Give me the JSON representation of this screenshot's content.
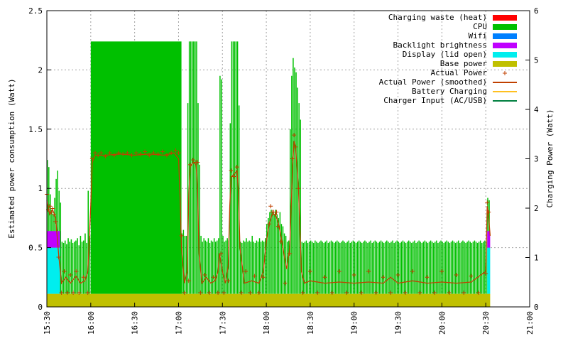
{
  "chart_data": {
    "type": "bar",
    "ylabel": "Estimated power consumption (Watt)",
    "y2label": "Charging Power (Watt)",
    "ylim": [
      0,
      2.5
    ],
    "y2lim": [
      0,
      6
    ],
    "xlim": [
      "15:30",
      "21:00"
    ],
    "y_ticks": [
      "0",
      "0.5",
      "1",
      "1.5",
      "2",
      "2.5"
    ],
    "y2_ticks": [
      "0",
      "1",
      "2",
      "3",
      "4",
      "5",
      "6"
    ],
    "x_ticks": [
      "15:30",
      "16:00",
      "16:30",
      "17:00",
      "17:30",
      "18:00",
      "18:30",
      "19:00",
      "19:30",
      "20:00",
      "20:30",
      "21:00"
    ],
    "grid": true,
    "legend_position": "top-right",
    "legend": [
      {
        "label": "Charging waste (heat)",
        "kind": "box",
        "color": "#ff0000"
      },
      {
        "label": "CPU",
        "kind": "box",
        "color": "#00c000"
      },
      {
        "label": "Wifi",
        "kind": "box",
        "color": "#0080ff"
      },
      {
        "label": "Backlight brightness",
        "kind": "box",
        "color": "#c000ff"
      },
      {
        "label": "Display (lid open)",
        "kind": "box",
        "color": "#00eeee"
      },
      {
        "label": "Base power",
        "kind": "box",
        "color": "#c0c000"
      },
      {
        "label": "Actual Power",
        "kind": "point",
        "color": "#c04000"
      },
      {
        "label": "Actual Power (smoothed)",
        "kind": "line",
        "color": "#c04000"
      },
      {
        "label": "Battery Charging",
        "kind": "line",
        "color": "#ffc020"
      },
      {
        "label": "Charger Input (AC/USB)",
        "kind": "line",
        "color": "#008040"
      }
    ],
    "colors": {
      "base": "#c0c000",
      "display": "#00eeee",
      "backlight": "#c000ff",
      "cpu": "#00c000",
      "actual": "#c04000"
    },
    "base_power": 0.11,
    "lid_open_periods": [
      {
        "start": "15:30",
        "end": "15:39",
        "display": 0.39,
        "backlight": 0.14
      },
      {
        "start": "20:31",
        "end": "20:33",
        "display": 0.39,
        "backlight": 0.14
      }
    ],
    "cpu_segments": [
      {
        "start": "15:30",
        "end": "15:40",
        "values": [
          1.24,
          1.18,
          0.95,
          0.82,
          0.78,
          0.92,
          1.08,
          1.15,
          0.98,
          0.88
        ]
      },
      {
        "start": "15:40",
        "end": "16:00",
        "values": [
          0.55,
          0.54,
          0.56,
          0.53,
          0.58,
          0.55,
          0.57,
          0.54,
          0.55,
          0.56,
          0.58,
          0.52,
          0.6,
          0.55,
          0.56,
          0.62,
          0.54,
          0.98,
          0.6
        ]
      },
      {
        "start": "16:00",
        "end": "17:02",
        "values": [
          2.24
        ]
      },
      {
        "start": "17:02",
        "end": "17:06",
        "values": [
          0.62,
          0.65,
          0.6,
          0.6
        ]
      },
      {
        "start": "17:06",
        "end": "17:13",
        "values": [
          1.72,
          2.24,
          2.24,
          2.24,
          2.24,
          2.24,
          2.24
        ]
      },
      {
        "start": "17:13",
        "end": "17:29",
        "values": [
          1.72,
          1.2,
          0.6,
          0.55,
          0.58,
          0.56,
          0.55,
          0.58,
          0.54,
          0.56,
          0.55,
          0.58,
          0.55,
          0.56,
          0.58,
          1.95
        ]
      },
      {
        "start": "17:29",
        "end": "17:35",
        "values": [
          1.92,
          0.6,
          0.55,
          0.56,
          0.58,
          0.56
        ]
      },
      {
        "start": "17:35",
        "end": "17:42",
        "values": [
          1.55,
          2.24,
          2.24,
          2.24,
          2.24,
          2.24,
          1.7
        ]
      },
      {
        "start": "17:42",
        "end": "18:00",
        "values": [
          0.55,
          0.54,
          0.56,
          0.55,
          0.58,
          0.55,
          0.56,
          0.55,
          0.6,
          0.55,
          0.54,
          0.56,
          0.55,
          0.58,
          0.55,
          0.56,
          0.55,
          0.58
        ]
      },
      {
        "start": "18:00",
        "end": "18:14",
        "values": [
          0.7,
          0.75,
          0.8,
          0.82,
          0.8,
          0.78,
          0.82,
          0.78,
          0.75,
          0.8,
          0.7,
          0.68,
          0.62,
          0.6
        ]
      },
      {
        "start": "18:14",
        "end": "18:24",
        "values": [
          0.55,
          0.56,
          1.5,
          1.95,
          2.1,
          2.02,
          1.98,
          1.85,
          1.72,
          1.58
        ]
      },
      {
        "start": "18:24",
        "end": "20:31",
        "values": [
          0.55,
          0.54,
          0.55,
          0.56,
          0.54,
          0.55,
          0.56,
          0.55,
          0.54,
          0.56,
          0.55,
          0.54,
          0.55,
          0.56,
          0.55,
          0.54,
          0.55,
          0.56,
          0.54,
          0.55,
          0.56,
          0.55,
          0.54,
          0.55,
          0.56,
          0.55,
          0.54,
          0.55,
          0.56,
          0.55,
          0.54,
          0.55,
          0.56,
          0.54,
          0.55,
          0.56,
          0.55,
          0.54,
          0.55,
          0.56,
          0.55,
          0.54,
          0.55,
          0.56,
          0.55,
          0.54,
          0.55,
          0.56,
          0.54,
          0.55,
          0.56,
          0.55,
          0.54,
          0.55,
          0.56,
          0.55,
          0.54,
          0.55,
          0.56,
          0.55,
          0.54,
          0.55,
          0.56,
          0.54,
          0.55,
          0.56,
          0.55,
          0.54,
          0.55,
          0.56,
          0.55,
          0.54,
          0.55,
          0.56,
          0.55,
          0.54,
          0.55,
          0.56,
          0.54,
          0.55,
          0.56,
          0.55,
          0.54,
          0.55,
          0.56,
          0.55,
          0.54,
          0.55,
          0.56,
          0.55,
          0.54,
          0.55,
          0.56,
          0.54,
          0.55,
          0.56,
          0.55,
          0.54,
          0.55,
          0.56,
          0.55,
          0.54,
          0.55,
          0.56,
          0.55,
          0.54,
          0.55,
          0.56,
          0.54,
          0.55,
          0.56,
          0.55,
          0.54,
          0.55,
          0.56,
          0.55,
          0.54,
          0.55,
          0.56,
          0.55,
          0.54,
          0.55,
          0.56,
          0.54,
          0.55,
          0.56,
          0.55
        ]
      },
      {
        "start": "20:31",
        "end": "20:33",
        "values": [
          0.92,
          0.9
        ]
      }
    ],
    "actual_power_smoothed": [
      [
        "15:30",
        0.9
      ],
      [
        "15:32",
        0.78
      ],
      [
        "15:34",
        0.82
      ],
      [
        "15:36",
        0.75
      ],
      [
        "15:38",
        0.45
      ],
      [
        "15:40",
        0.2
      ],
      [
        "15:43",
        0.25
      ],
      [
        "15:46",
        0.2
      ],
      [
        "15:50",
        0.26
      ],
      [
        "15:53",
        0.2
      ],
      [
        "15:56",
        0.22
      ],
      [
        "15:58",
        0.3
      ],
      [
        "16:00",
        0.85
      ],
      [
        "16:01",
        1.22
      ],
      [
        "16:03",
        1.28
      ],
      [
        "16:10",
        1.28
      ],
      [
        "16:20",
        1.29
      ],
      [
        "16:30",
        1.28
      ],
      [
        "16:40",
        1.29
      ],
      [
        "16:50",
        1.28
      ],
      [
        "16:57",
        1.3
      ],
      [
        "17:00",
        1.25
      ],
      [
        "17:01",
        0.95
      ],
      [
        "17:02",
        0.5
      ],
      [
        "17:04",
        0.2
      ],
      [
        "17:06",
        0.3
      ],
      [
        "17:07",
        0.95
      ],
      [
        "17:08",
        1.18
      ],
      [
        "17:10",
        1.22
      ],
      [
        "17:12",
        1.2
      ],
      [
        "17:13",
        1.0
      ],
      [
        "17:14",
        0.45
      ],
      [
        "17:16",
        0.2
      ],
      [
        "17:19",
        0.25
      ],
      [
        "17:22",
        0.2
      ],
      [
        "17:25",
        0.22
      ],
      [
        "17:27",
        0.3
      ],
      [
        "17:28",
        0.45
      ],
      [
        "17:30",
        0.3
      ],
      [
        "17:32",
        0.2
      ],
      [
        "17:34",
        0.35
      ],
      [
        "17:35",
        0.85
      ],
      [
        "17:36",
        1.1
      ],
      [
        "17:38",
        1.12
      ],
      [
        "17:40",
        1.15
      ],
      [
        "17:41",
        0.95
      ],
      [
        "17:42",
        0.5
      ],
      [
        "17:45",
        0.2
      ],
      [
        "17:50",
        0.22
      ],
      [
        "17:55",
        0.2
      ],
      [
        "17:58",
        0.3
      ],
      [
        "18:00",
        0.55
      ],
      [
        "18:02",
        0.7
      ],
      [
        "18:04",
        0.78
      ],
      [
        "18:06",
        0.78
      ],
      [
        "18:08",
        0.72
      ],
      [
        "18:10",
        0.6
      ],
      [
        "18:12",
        0.45
      ],
      [
        "18:14",
        0.32
      ],
      [
        "18:16",
        0.5
      ],
      [
        "18:18",
        1.2
      ],
      [
        "18:19",
        1.4
      ],
      [
        "18:20",
        1.35
      ],
      [
        "18:22",
        1.0
      ],
      [
        "18:24",
        0.3
      ],
      [
        "18:26",
        0.2
      ],
      [
        "18:30",
        0.22
      ],
      [
        "18:40",
        0.2
      ],
      [
        "18:50",
        0.21
      ],
      [
        "19:00",
        0.2
      ],
      [
        "19:10",
        0.21
      ],
      [
        "19:20",
        0.2
      ],
      [
        "19:25",
        0.25
      ],
      [
        "19:30",
        0.2
      ],
      [
        "19:40",
        0.22
      ],
      [
        "19:50",
        0.2
      ],
      [
        "20:00",
        0.21
      ],
      [
        "20:10",
        0.2
      ],
      [
        "20:20",
        0.21
      ],
      [
        "20:30",
        0.3
      ],
      [
        "20:31",
        0.85
      ],
      [
        "20:32",
        0.75
      ],
      [
        "20:33",
        0.6
      ]
    ],
    "actual_power_points": [
      [
        "15:30",
        0.95
      ],
      [
        "15:31",
        0.82
      ],
      [
        "15:32",
        0.85
      ],
      [
        "15:33",
        0.8
      ],
      [
        "15:34",
        0.83
      ],
      [
        "15:35",
        0.78
      ],
      [
        "15:36",
        0.72
      ],
      [
        "15:38",
        0.42
      ],
      [
        "15:40",
        0.12
      ],
      [
        "15:42",
        0.3
      ],
      [
        "15:44",
        0.12
      ],
      [
        "15:46",
        0.27
      ],
      [
        "15:48",
        0.12
      ],
      [
        "15:50",
        0.3
      ],
      [
        "15:52",
        0.12
      ],
      [
        "15:55",
        0.25
      ],
      [
        "15:58",
        0.12
      ],
      [
        "16:01",
        1.25
      ],
      [
        "16:03",
        1.3
      ],
      [
        "16:05",
        1.28
      ],
      [
        "16:07",
        1.3
      ],
      [
        "16:10",
        1.27
      ],
      [
        "16:13",
        1.3
      ],
      [
        "16:16",
        1.28
      ],
      [
        "16:19",
        1.3
      ],
      [
        "16:22",
        1.29
      ],
      [
        "16:25",
        1.3
      ],
      [
        "16:28",
        1.28
      ],
      [
        "16:31",
        1.3
      ],
      [
        "16:34",
        1.29
      ],
      [
        "16:37",
        1.31
      ],
      [
        "16:40",
        1.28
      ],
      [
        "16:43",
        1.3
      ],
      [
        "16:46",
        1.29
      ],
      [
        "16:49",
        1.31
      ],
      [
        "16:52",
        1.28
      ],
      [
        "16:55",
        1.3
      ],
      [
        "16:58",
        1.32
      ],
      [
        "17:00",
        1.3
      ],
      [
        "17:02",
        0.6
      ],
      [
        "17:04",
        0.12
      ],
      [
        "17:07",
        0.22
      ],
      [
        "17:08",
        1.2
      ],
      [
        "17:10",
        1.24
      ],
      [
        "17:12",
        1.22
      ],
      [
        "17:13",
        1.22
      ],
      [
        "17:15",
        0.12
      ],
      [
        "17:18",
        0.27
      ],
      [
        "17:21",
        0.12
      ],
      [
        "17:24",
        0.25
      ],
      [
        "17:27",
        0.12
      ],
      [
        "17:29",
        0.45
      ],
      [
        "17:31",
        0.12
      ],
      [
        "17:34",
        0.22
      ],
      [
        "17:36",
        1.15
      ],
      [
        "17:38",
        1.1
      ],
      [
        "17:40",
        1.18
      ],
      [
        "17:43",
        0.12
      ],
      [
        "17:46",
        0.3
      ],
      [
        "17:49",
        0.12
      ],
      [
        "17:52",
        0.26
      ],
      [
        "17:55",
        0.12
      ],
      [
        "17:58",
        0.25
      ],
      [
        "18:02",
        0.7
      ],
      [
        "18:03",
        0.85
      ],
      [
        "18:04",
        0.8
      ],
      [
        "18:05",
        0.8
      ],
      [
        "18:06",
        0.78
      ],
      [
        "18:07",
        0.8
      ],
      [
        "18:08",
        0.68
      ],
      [
        "18:10",
        0.55
      ],
      [
        "18:13",
        0.2
      ],
      [
        "18:16",
        0.45
      ],
      [
        "18:18",
        1.25
      ],
      [
        "18:19",
        1.45
      ],
      [
        "18:20",
        1.35
      ],
      [
        "18:22",
        1.0
      ],
      [
        "18:25",
        0.12
      ],
      [
        "18:30",
        0.3
      ],
      [
        "18:35",
        0.12
      ],
      [
        "18:40",
        0.25
      ],
      [
        "18:45",
        0.12
      ],
      [
        "18:50",
        0.3
      ],
      [
        "18:55",
        0.12
      ],
      [
        "19:00",
        0.27
      ],
      [
        "19:05",
        0.12
      ],
      [
        "19:10",
        0.3
      ],
      [
        "19:15",
        0.12
      ],
      [
        "19:20",
        0.25
      ],
      [
        "19:25",
        0.12
      ],
      [
        "19:30",
        0.27
      ],
      [
        "19:35",
        0.12
      ],
      [
        "19:40",
        0.3
      ],
      [
        "19:45",
        0.12
      ],
      [
        "19:50",
        0.25
      ],
      [
        "19:55",
        0.12
      ],
      [
        "20:00",
        0.3
      ],
      [
        "20:05",
        0.12
      ],
      [
        "20:10",
        0.27
      ],
      [
        "20:15",
        0.12
      ],
      [
        "20:20",
        0.26
      ],
      [
        "20:25",
        0.12
      ],
      [
        "20:30",
        0.28
      ],
      [
        "20:31",
        0.88
      ],
      [
        "20:32",
        0.8
      ]
    ]
  }
}
